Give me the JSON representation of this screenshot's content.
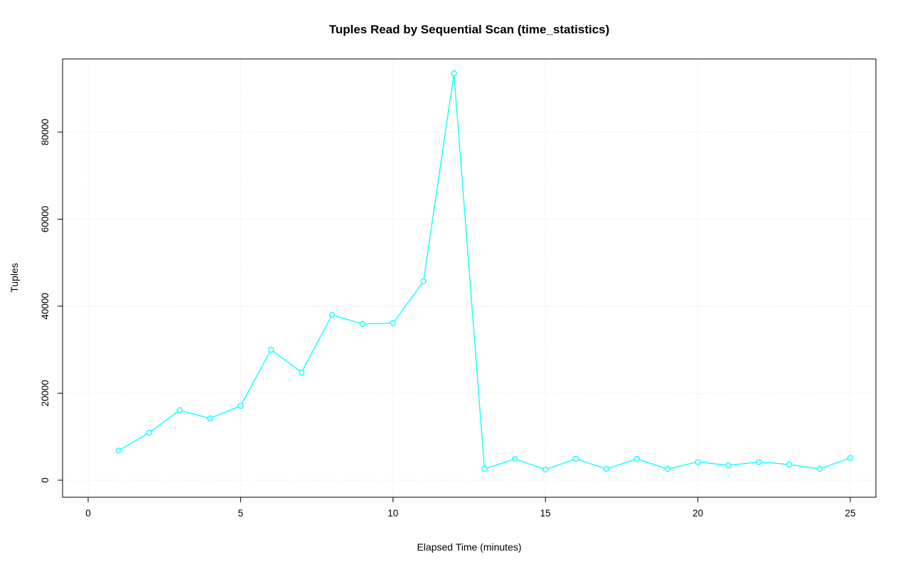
{
  "chart_data": {
    "type": "line",
    "title": "Tuples Read by Sequential Scan (time_statistics)",
    "xlabel": "Elapsed Time (minutes)",
    "ylabel": "Tuples",
    "x": [
      1,
      2,
      3,
      4,
      5,
      6,
      7,
      8,
      9,
      10,
      11,
      12,
      13,
      14,
      15,
      16,
      17,
      18,
      19,
      20,
      21,
      22,
      23,
      24,
      25
    ],
    "values": [
      6800,
      10900,
      16100,
      14200,
      17100,
      30000,
      24800,
      38000,
      35900,
      36100,
      45700,
      93500,
      2600,
      4900,
      2450,
      4900,
      2600,
      4900,
      2600,
      4200,
      3400,
      4200,
      3600,
      2600,
      5100
    ],
    "xticks": [
      0,
      5,
      10,
      15,
      20,
      25
    ],
    "yticks": [
      0,
      20000,
      40000,
      60000,
      80000
    ],
    "xlim": [
      0,
      26
    ],
    "ylim": [
      0,
      95000
    ],
    "grid": "dotted",
    "legend": "none",
    "line_color": "#00FFFF",
    "marker": "open-circle",
    "marker_fill": "#ffffff",
    "grid_color": "#D9D9D9",
    "axis_color": "#000000"
  }
}
